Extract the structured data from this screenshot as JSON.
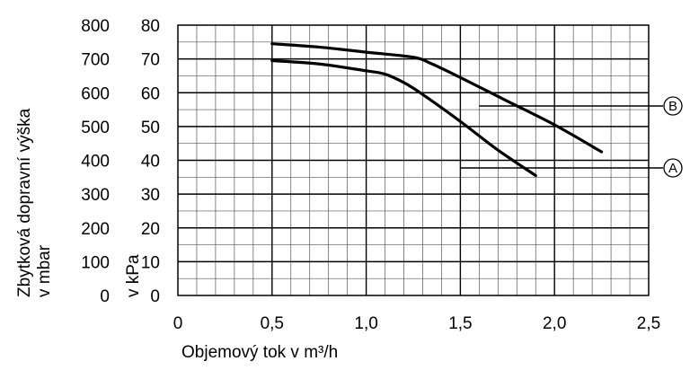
{
  "chart_data": {
    "type": "line",
    "xlabel": "Objemový tok v m³/h",
    "ylabel_mbar": [
      "Zbytková dopravní výška",
      "v mbar"
    ],
    "ylabel_kpa": "v kPa",
    "xlim": [
      0,
      2.5
    ],
    "ylim_kpa": [
      0,
      80
    ],
    "ylim_mbar": [
      0,
      800
    ],
    "x_ticks": [
      "0",
      "0,5",
      "1,0",
      "1,5",
      "2,0",
      "2,5"
    ],
    "y_ticks_kpa": [
      "0",
      "10",
      "20",
      "30",
      "40",
      "50",
      "60",
      "70",
      "80"
    ],
    "y_ticks_mbar": [
      "0",
      "100",
      "200",
      "300",
      "400",
      "500",
      "600",
      "700",
      "800"
    ],
    "grid": true,
    "series": [
      {
        "name": "A",
        "x": [
          0.5,
          0.75,
          1.0,
          1.1,
          1.2,
          1.3,
          1.5,
          1.7,
          1.9
        ],
        "y": [
          69.5,
          68.5,
          66.5,
          65.5,
          63,
          59.5,
          51.5,
          43,
          35.5
        ]
      },
      {
        "name": "B",
        "x": [
          0.5,
          0.75,
          1.0,
          1.25,
          1.35,
          1.5,
          1.75,
          2.0,
          2.25
        ],
        "y": [
          74.5,
          73.5,
          72,
          70.5,
          68.5,
          64.5,
          57.5,
          50.5,
          42.5
        ]
      }
    ]
  }
}
